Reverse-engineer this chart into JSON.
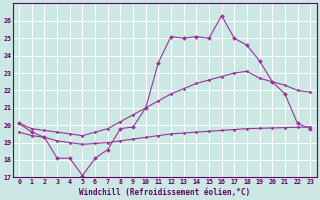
{
  "xlabel": "Windchill (Refroidissement éolien,°C)",
  "bg_color": "#cbe8e4",
  "grid_color": "#ffffff",
  "line_color": "#993399",
  "ylim": [
    17,
    27
  ],
  "xlim": [
    -0.5,
    23.5
  ],
  "yticks": [
    17,
    18,
    19,
    20,
    21,
    22,
    23,
    24,
    25,
    26
  ],
  "xticks": [
    0,
    1,
    2,
    3,
    4,
    5,
    6,
    7,
    8,
    9,
    10,
    11,
    12,
    13,
    14,
    15,
    16,
    17,
    18,
    19,
    20,
    21,
    22,
    23
  ],
  "line1_x": [
    0,
    1,
    2,
    3,
    4,
    5,
    6,
    7,
    8,
    9,
    10,
    11,
    12,
    13,
    14,
    15,
    16,
    17,
    18,
    19,
    20,
    21,
    22,
    23
  ],
  "line1_y": [
    20.1,
    19.6,
    19.3,
    18.1,
    18.1,
    17.1,
    18.1,
    18.6,
    19.8,
    19.9,
    21.0,
    23.6,
    25.1,
    25.0,
    25.1,
    25.0,
    26.3,
    25.0,
    24.6,
    23.7,
    22.5,
    21.8,
    20.1,
    19.8
  ],
  "line2_x": [
    0,
    1,
    2,
    3,
    4,
    5,
    6,
    7,
    8,
    9,
    10,
    11,
    12,
    13,
    14,
    15,
    16,
    17,
    18,
    19,
    20,
    21,
    22,
    23
  ],
  "line2_y": [
    20.1,
    19.8,
    19.7,
    19.6,
    19.5,
    19.4,
    19.6,
    19.8,
    20.2,
    20.6,
    21.0,
    21.4,
    21.8,
    22.1,
    22.4,
    22.6,
    22.8,
    23.0,
    23.1,
    22.7,
    22.5,
    22.3,
    22.0,
    21.9
  ],
  "line3_x": [
    0,
    1,
    2,
    3,
    4,
    5,
    6,
    7,
    8,
    9,
    10,
    11,
    12,
    13,
    14,
    15,
    16,
    17,
    18,
    19,
    20,
    21,
    22,
    23
  ],
  "line3_y": [
    19.6,
    19.4,
    19.3,
    19.1,
    19.0,
    18.9,
    18.95,
    19.0,
    19.1,
    19.2,
    19.3,
    19.4,
    19.5,
    19.55,
    19.6,
    19.65,
    19.7,
    19.75,
    19.8,
    19.82,
    19.84,
    19.86,
    19.88,
    19.9
  ]
}
